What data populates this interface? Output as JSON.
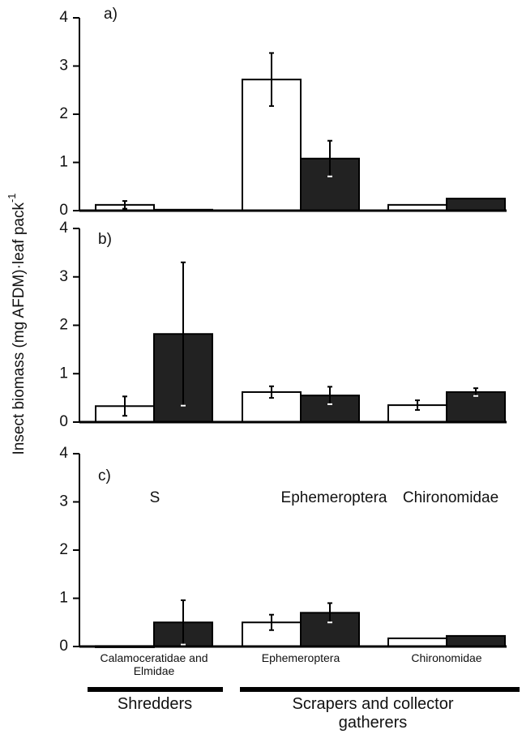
{
  "chart_data": [
    {
      "type": "bar",
      "panel_label": "a)",
      "categories": [
        null,
        null,
        null
      ],
      "ylim": [
        0,
        4
      ],
      "yticks": [
        0,
        1,
        2,
        3,
        4
      ],
      "series": [
        {
          "color": "#ffffff",
          "values": [
            0.12,
            2.72,
            0.12
          ],
          "errors": [
            0.08,
            0.55,
            null
          ]
        },
        {
          "color": "#222222",
          "values": [
            0.02,
            1.08,
            0.25
          ],
          "errors": [
            null,
            0.37,
            null
          ]
        }
      ]
    },
    {
      "type": "bar",
      "panel_label": "b)",
      "categories": [
        null,
        null,
        null
      ],
      "y_label": "Insect biomass (mg AFDM)·leaf pack",
      "y_label_sup": "-1",
      "ylim": [
        0,
        4
      ],
      "yticks": [
        0,
        1,
        2,
        3,
        4
      ],
      "series": [
        {
          "color": "#ffffff",
          "values": [
            0.33,
            0.62,
            0.35
          ],
          "errors": [
            0.2,
            0.12,
            0.1
          ]
        },
        {
          "color": "#222222",
          "values": [
            1.82,
            0.55,
            0.62
          ],
          "errors": [
            1.48,
            0.18,
            0.08
          ]
        }
      ]
    },
    {
      "type": "bar",
      "panel_label": "c)",
      "categories": [
        "Calamoceratidae and Elmidae",
        "Ephemeroptera",
        "Chironomidae"
      ],
      "annotations": [
        "S",
        "Ephemeroptera",
        "Chironomidae"
      ],
      "category_groups": [
        "Shredders",
        "Scrapers and collector gatherers"
      ],
      "ylim": [
        0,
        4
      ],
      "yticks": [
        0,
        1,
        2,
        3,
        4
      ],
      "series": [
        {
          "color": "#ffffff",
          "values": [
            0.01,
            0.5,
            0.17
          ],
          "errors": [
            null,
            0.16,
            null
          ]
        },
        {
          "color": "#222222",
          "values": [
            0.5,
            0.7,
            0.22
          ],
          "errors": [
            0.46,
            0.2,
            null
          ]
        }
      ]
    }
  ]
}
